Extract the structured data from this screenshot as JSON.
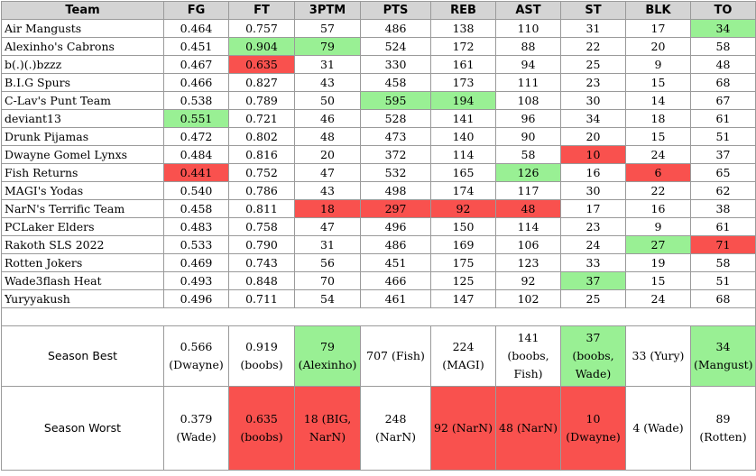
{
  "colors": {
    "best": "#99f094",
    "worst": "#f9514e",
    "header_bg": "#d4d4d4"
  },
  "headers": [
    "Team",
    "FG",
    "FT",
    "3PTM",
    "PTS",
    "REB",
    "AST",
    "ST",
    "BLK",
    "TO"
  ],
  "rows": [
    {
      "cells": [
        "Air Mangusts",
        "0.464",
        "0.757",
        "57",
        "486",
        "138",
        "110",
        "31",
        "17",
        "34"
      ],
      "hl": [
        "",
        "",
        "",
        "",
        "",
        "",
        "",
        "",
        "",
        "g"
      ]
    },
    {
      "cells": [
        "Alexinho's Cabrons",
        "0.451",
        "0.904",
        "79",
        "524",
        "172",
        "88",
        "22",
        "20",
        "58"
      ],
      "hl": [
        "",
        "",
        "g",
        "g",
        "",
        "",
        "",
        "",
        "",
        ""
      ]
    },
    {
      "cells": [
        "b(.)(.)bzzz",
        "0.467",
        "0.635",
        "31",
        "330",
        "161",
        "94",
        "25",
        "9",
        "48"
      ],
      "hl": [
        "",
        "",
        "r",
        "",
        "",
        "",
        "",
        "",
        "",
        ""
      ]
    },
    {
      "cells": [
        "B.I.G Spurs",
        "0.466",
        "0.827",
        "43",
        "458",
        "173",
        "111",
        "23",
        "15",
        "68"
      ],
      "hl": [
        "",
        "",
        "",
        "",
        "",
        "",
        "",
        "",
        "",
        ""
      ]
    },
    {
      "cells": [
        "C-Lav's Punt Team",
        "0.538",
        "0.789",
        "50",
        "595",
        "194",
        "108",
        "30",
        "14",
        "67"
      ],
      "hl": [
        "",
        "",
        "",
        "",
        "g",
        "g",
        "",
        "",
        "",
        ""
      ]
    },
    {
      "cells": [
        "deviant13",
        "0.551",
        "0.721",
        "46",
        "528",
        "141",
        "96",
        "34",
        "18",
        "61"
      ],
      "hl": [
        "",
        "g",
        "",
        "",
        "",
        "",
        "",
        "",
        "",
        ""
      ]
    },
    {
      "cells": [
        "Drunk Pijamas",
        "0.472",
        "0.802",
        "48",
        "473",
        "140",
        "90",
        "20",
        "15",
        "51"
      ],
      "hl": [
        "",
        "",
        "",
        "",
        "",
        "",
        "",
        "",
        "",
        ""
      ]
    },
    {
      "cells": [
        "Dwayne Gomel Lynxs",
        "0.484",
        "0.816",
        "20",
        "372",
        "114",
        "58",
        "10",
        "24",
        "37"
      ],
      "hl": [
        "",
        "",
        "",
        "",
        "",
        "",
        "",
        "r",
        "",
        ""
      ]
    },
    {
      "cells": [
        "Fish Returns",
        "0.441",
        "0.752",
        "47",
        "532",
        "165",
        "126",
        "16",
        "6",
        "65"
      ],
      "hl": [
        "",
        "r",
        "",
        "",
        "",
        "",
        "g",
        "",
        "r",
        ""
      ]
    },
    {
      "cells": [
        "MAGI's Yodas",
        "0.540",
        "0.786",
        "43",
        "498",
        "174",
        "117",
        "30",
        "22",
        "62"
      ],
      "hl": [
        "",
        "",
        "",
        "",
        "",
        "",
        "",
        "",
        "",
        ""
      ]
    },
    {
      "cells": [
        "NarN's Terrific Team",
        "0.458",
        "0.811",
        "18",
        "297",
        "92",
        "48",
        "17",
        "16",
        "38"
      ],
      "hl": [
        "",
        "",
        "",
        "r",
        "r",
        "r",
        "r",
        "",
        "",
        ""
      ]
    },
    {
      "cells": [
        "PCLaker Elders",
        "0.483",
        "0.758",
        "47",
        "496",
        "150",
        "114",
        "23",
        "9",
        "61"
      ],
      "hl": [
        "",
        "",
        "",
        "",
        "",
        "",
        "",
        "",
        "",
        ""
      ]
    },
    {
      "cells": [
        "Rakoth SLS 2022",
        "0.533",
        "0.790",
        "31",
        "486",
        "169",
        "106",
        "24",
        "27",
        "71"
      ],
      "hl": [
        "",
        "",
        "",
        "",
        "",
        "",
        "",
        "",
        "g",
        "r"
      ]
    },
    {
      "cells": [
        "Rotten Jokers",
        "0.469",
        "0.743",
        "56",
        "451",
        "175",
        "123",
        "33",
        "19",
        "58"
      ],
      "hl": [
        "",
        "",
        "",
        "",
        "",
        "",
        "",
        "",
        "",
        ""
      ]
    },
    {
      "cells": [
        "Wade3flash Heat",
        "0.493",
        "0.848",
        "70",
        "466",
        "125",
        "92",
        "37",
        "15",
        "51"
      ],
      "hl": [
        "",
        "",
        "",
        "",
        "",
        "",
        "",
        "g",
        "",
        ""
      ]
    },
    {
      "cells": [
        "Yuryyakush",
        "0.496",
        "0.711",
        "54",
        "461",
        "147",
        "102",
        "25",
        "24",
        "68"
      ],
      "hl": [
        "",
        "",
        "",
        "",
        "",
        "",
        "",
        "",
        "",
        ""
      ]
    }
  ],
  "season_best": {
    "label": "Season Best",
    "cells": [
      "0.566 (Dwayne)",
      "0.919 (boobs)",
      "79 (Alexinho)",
      "707 (Fish)",
      "224 (MAGI)",
      "141 (boobs, Fish)",
      "37 (boobs, Wade)",
      "33 (Yury)",
      "34 (Mangust)"
    ],
    "hl": [
      "",
      "",
      "g",
      "",
      "",
      "",
      "g",
      "",
      "g"
    ]
  },
  "season_worst": {
    "label": "Season Worst",
    "cells": [
      "0.379 (Wade)",
      "0.635 (boobs)",
      "18 (BIG, NarN)",
      "248 (NarN)",
      "92 (NarN)",
      "48 (NarN)",
      "10 (Dwayne)",
      "4 (Wade)",
      "89 (Rotten)"
    ],
    "hl": [
      "",
      "r",
      "r",
      "",
      "r",
      "r",
      "r",
      "",
      ""
    ]
  }
}
